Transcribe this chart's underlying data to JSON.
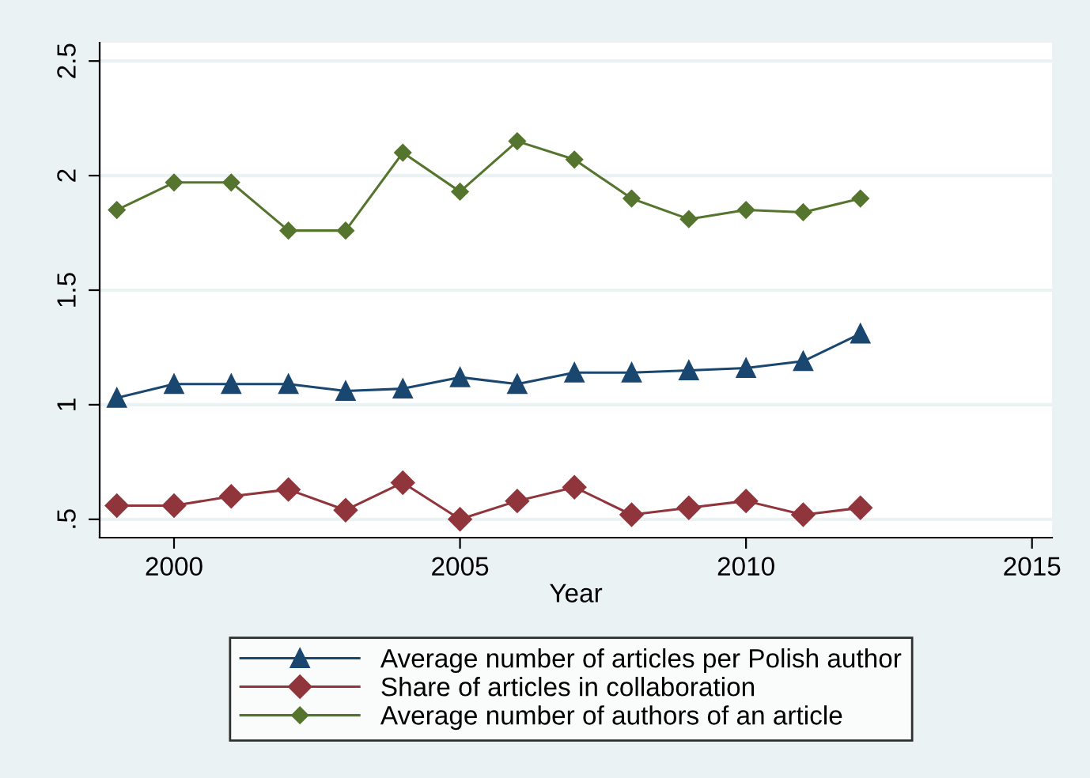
{
  "chart_data": {
    "type": "line",
    "xlabel": "Year",
    "x": [
      1999,
      2000,
      2001,
      2002,
      2003,
      2004,
      2005,
      2006,
      2007,
      2008,
      2009,
      2010,
      2011,
      2012
    ],
    "series": [
      {
        "name": "Average number of articles per Polish author",
        "color": "#1a476f",
        "marker": "triangle",
        "values": [
          1.03,
          1.09,
          1.09,
          1.09,
          1.06,
          1.07,
          1.12,
          1.09,
          1.14,
          1.14,
          1.15,
          1.16,
          1.19,
          1.31
        ]
      },
      {
        "name": "Share of articles in collaboration",
        "color": "#90353b",
        "marker": "diamond",
        "values": [
          0.56,
          0.56,
          0.6,
          0.63,
          0.54,
          0.66,
          0.5,
          0.58,
          0.64,
          0.52,
          0.55,
          0.58,
          0.52,
          0.55
        ]
      },
      {
        "name": "Average number of authors of an article",
        "color": "#55752f",
        "marker": "diamond",
        "values": [
          1.85,
          1.97,
          1.97,
          1.76,
          1.76,
          2.1,
          1.93,
          2.15,
          2.07,
          1.9,
          1.81,
          1.85,
          1.84,
          1.9
        ]
      }
    ],
    "xlim": [
      1998.7,
      2015.35
    ],
    "xticks": [
      2000,
      2005,
      2010,
      2015
    ],
    "ylim": [
      0.42,
      2.58
    ],
    "yticks": [
      {
        "value": 0.5,
        "label": ".5"
      },
      1,
      1.5,
      2,
      2.5
    ],
    "grid": "y",
    "legend": "bottom"
  }
}
